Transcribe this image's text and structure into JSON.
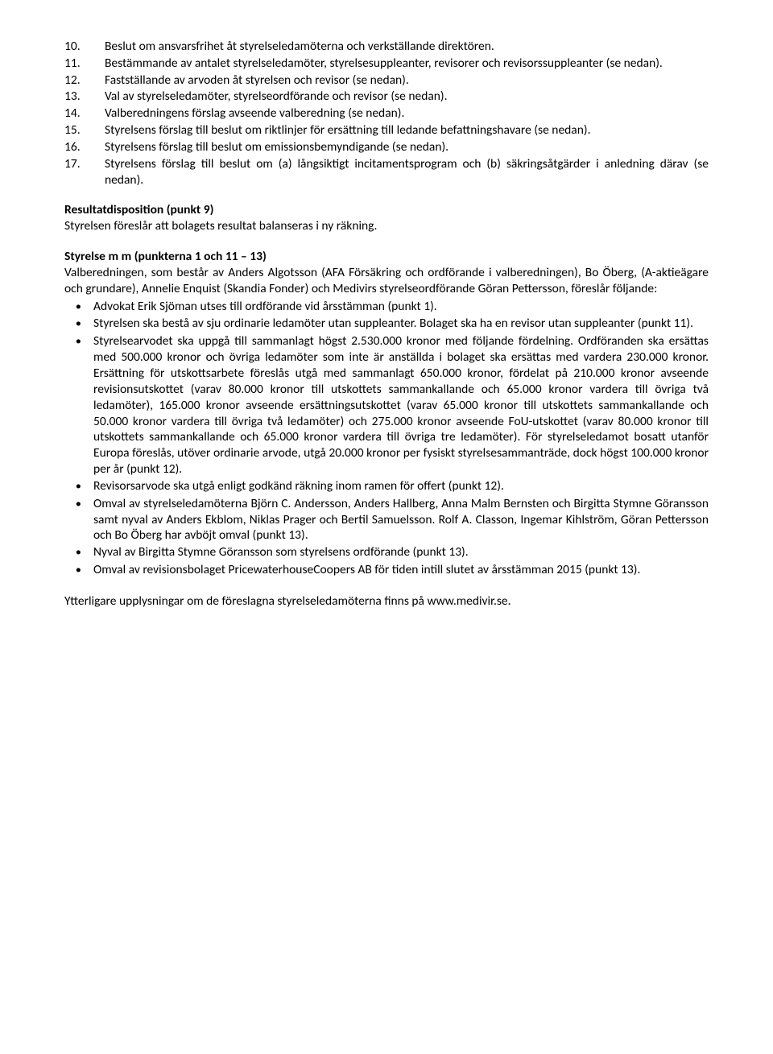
{
  "numbered": [
    {
      "n": "10.",
      "text": "Beslut om ansvarsfrihet åt styrelseledamöterna och verkställande direktören."
    },
    {
      "n": "11.",
      "text": "Bestämmande av antalet styrelseledamöter, styrelsesuppleanter, revisorer och revisorssuppleanter (se nedan)."
    },
    {
      "n": "12.",
      "text": "Fastställande av arvoden åt styrelsen och revisor (se nedan)."
    },
    {
      "n": "13.",
      "text": "Val av styrelseledamöter, styrelseordförande och revisor (se nedan)."
    },
    {
      "n": "14.",
      "text": "Valberedningens förslag avseende valberedning (se nedan)."
    },
    {
      "n": "15.",
      "text": "Styrelsens förslag till beslut om riktlinjer för ersättning till ledande befattningshavare (se nedan)."
    },
    {
      "n": "16.",
      "text": "Styrelsens förslag till beslut om emissionsbemyndigande (se nedan)."
    },
    {
      "n": "17.",
      "text": "Styrelsens förslag till beslut om (a) långsiktigt incitamentsprogram och (b) säkringsåtgärder i anledning därav (se nedan)."
    }
  ],
  "section1": {
    "title": "Resultatdisposition (punkt 9)",
    "body": "Styrelsen föreslår att bolagets resultat balanseras i ny räkning."
  },
  "section2": {
    "title": "Styrelse m m (punkterna 1 och 11 – 13)",
    "intro": "Valberedningen, som består av Anders Algotsson (AFA Försäkring och ordförande i valberedningen), Bo Öberg, (A-aktieägare och grundare), Annelie Enquist (Skandia Fonder) och Medivirs styrelseordförande Göran Pettersson, föreslår följande:",
    "bullets": [
      "Advokat Erik Sjöman utses till ordförande vid årsstämman (punkt 1).",
      "Styrelsen ska bestå av sju ordinarie ledamöter utan suppleanter. Bolaget ska ha en revisor utan suppleanter (punkt 11).",
      "Styrelsearvodet ska uppgå till sammanlagt högst 2.530.000 kronor med följande fördelning. Ordföranden ska ersättas med 500.000 kronor och övriga ledamöter som inte är anställda i bolaget ska ersättas med vardera 230.000 kronor. Ersättning för utskottsarbete föreslås utgå med sammanlagt 650.000 kronor, fördelat på 210.000 kronor avseende revisionsutskottet (varav 80.000 kronor till utskottets sammankallande och 65.000 kronor vardera till övriga två ledamöter), 165.000 kronor avseende ersättningsutskottet (varav 65.000 kronor till utskottets sammankallande och 50.000 kronor vardera till övriga två ledamöter) och 275.000 kronor avseende FoU-utskottet (varav 80.000 kronor till utskottets sammankallande och 65.000 kronor vardera till övriga tre ledamöter). För styrelseledamot bosatt utanför Europa föreslås, utöver ordinarie arvode, utgå 20.000 kronor per fysiskt styrelsesammanträde, dock högst 100.000 kronor per år (punkt 12).",
      "Revisorsarvode ska utgå enligt godkänd räkning inom ramen för offert (punkt 12).",
      "Omval av styrelseledamöterna Björn C. Andersson, Anders Hallberg, Anna Malm Bernsten och Birgitta Stymne Göransson samt nyval av Anders Ekblom, Niklas Prager och Bertil Samuelsson. Rolf A. Classon, Ingemar Kihlström, Göran Pettersson och Bo Öberg har avböjt omval (punkt 13).",
      "Nyval av Birgitta Stymne Göransson som styrelsens ordförande (punkt 13).",
      "Omval av revisionsbolaget PricewaterhouseCoopers AB för tiden intill slutet av årsstämman 2015 (punkt 13)."
    ]
  },
  "footer": "Ytterligare upplysningar om de föreslagna styrelseledamöterna finns på www.medivir.se."
}
